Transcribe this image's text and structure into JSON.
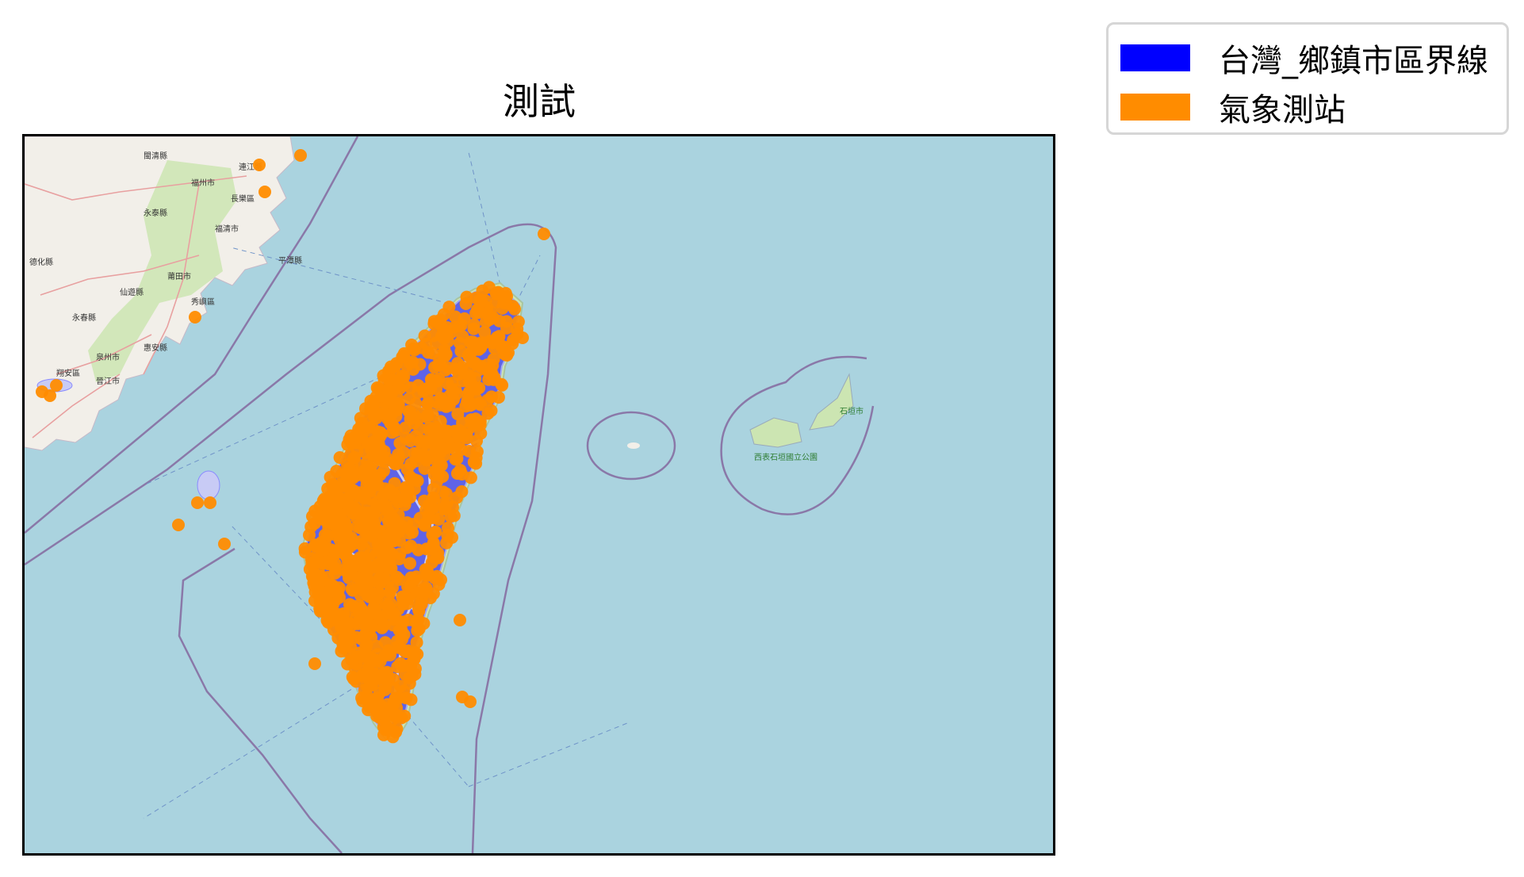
{
  "title": "測試",
  "legend": {
    "items": [
      {
        "label": "台灣_鄉鎮市區界線",
        "color": "#0000ff"
      },
      {
        "label": "氣象測站",
        "color": "#ff8c00"
      }
    ]
  },
  "map": {
    "colors": {
      "sea": "#aad3df",
      "land": "#f2efe9",
      "green": "#cce5b2",
      "boundary": "#8a78a8",
      "polygon_fill": "#4d4df0",
      "station": "#ff8c00"
    },
    "place_labels": [
      "閩清縣",
      "福州市",
      "連江縣",
      "長樂區",
      "永泰縣",
      "福清市",
      "平潭縣",
      "莆田市",
      "仙遊縣",
      "德化縣",
      "永春縣",
      "秀嶼區",
      "泉州市",
      "惠安縣",
      "晉江市",
      "翔安區",
      "石垣市",
      "西表石垣國立公園"
    ]
  }
}
